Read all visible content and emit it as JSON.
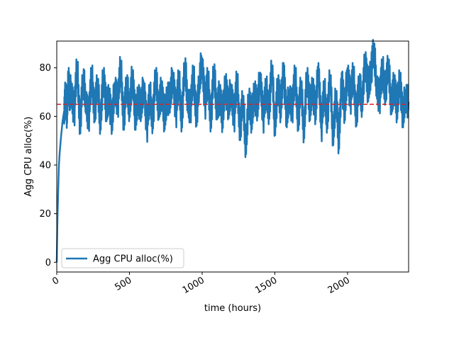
{
  "chart_data": {
    "type": "line",
    "title": "",
    "xlabel": "time (hours)",
    "ylabel": "Agg CPU alloc(%)",
    "xlim": [
      0,
      2420
    ],
    "ylim": [
      -4,
      91
    ],
    "xticks": [
      0,
      500,
      1000,
      1500,
      2000
    ],
    "yticks": [
      0,
      20,
      40,
      60,
      80
    ],
    "grid": false,
    "legend": {
      "placement": "lower-left",
      "entries": [
        "Agg CPU alloc(%)"
      ]
    },
    "reference_line": {
      "y": 65,
      "style": "dashed",
      "color": "#d62728"
    },
    "series": [
      {
        "name": "Agg CPU alloc(%)",
        "color": "#1f77b4",
        "x": [
          0,
          5,
          10,
          15,
          20,
          30,
          40,
          50,
          60,
          70,
          80,
          90,
          100,
          120,
          140,
          160,
          180,
          200,
          220,
          240,
          260,
          280,
          300,
          320,
          340,
          360,
          380,
          400,
          420,
          440,
          460,
          480,
          500,
          520,
          540,
          560,
          580,
          600,
          620,
          640,
          660,
          680,
          700,
          720,
          740,
          760,
          780,
          800,
          820,
          840,
          860,
          880,
          900,
          920,
          940,
          960,
          980,
          1000,
          1020,
          1040,
          1060,
          1080,
          1100,
          1120,
          1140,
          1160,
          1180,
          1200,
          1220,
          1240,
          1260,
          1280,
          1300,
          1320,
          1340,
          1360,
          1380,
          1400,
          1420,
          1440,
          1460,
          1480,
          1500,
          1520,
          1540,
          1560,
          1580,
          1600,
          1620,
          1640,
          1660,
          1680,
          1700,
          1720,
          1740,
          1760,
          1780,
          1800,
          1820,
          1840,
          1860,
          1880,
          1900,
          1920,
          1940,
          1960,
          1980,
          2000,
          2020,
          2040,
          2060,
          2080,
          2100,
          2120,
          2140,
          2160,
          2180,
          2200,
          2220,
          2240,
          2260,
          2280,
          2300,
          2320,
          2340,
          2360,
          2380,
          2400,
          2420
        ],
        "values": [
          0,
          18,
          30,
          40,
          45,
          52,
          58,
          62,
          70,
          60,
          78,
          66,
          72,
          62,
          80,
          58,
          74,
          68,
          60,
          76,
          64,
          72,
          58,
          78,
          62,
          70,
          56,
          74,
          66,
          80,
          60,
          72,
          64,
          78,
          58,
          70,
          62,
          74,
          56,
          68,
          60,
          76,
          64,
          72,
          58,
          70,
          66,
          78,
          62,
          74,
          60,
          80,
          68,
          64,
          76,
          62,
          72,
          84,
          66,
          74,
          60,
          78,
          64,
          70,
          58,
          76,
          62,
          72,
          60,
          74,
          56,
          66,
          48,
          68,
          58,
          72,
          62,
          78,
          60,
          70,
          64,
          80,
          56,
          74,
          62,
          82,
          58,
          70,
          64,
          76,
          60,
          72,
          54,
          78,
          62,
          74,
          60,
          82,
          56,
          70,
          60,
          76,
          52,
          70,
          48,
          78,
          60,
          80,
          68,
          76,
          62,
          72,
          66,
          84,
          70,
          80,
          86,
          74,
          68,
          78,
          72,
          80,
          66,
          74,
          62,
          78,
          58,
          70,
          66
        ]
      }
    ]
  }
}
